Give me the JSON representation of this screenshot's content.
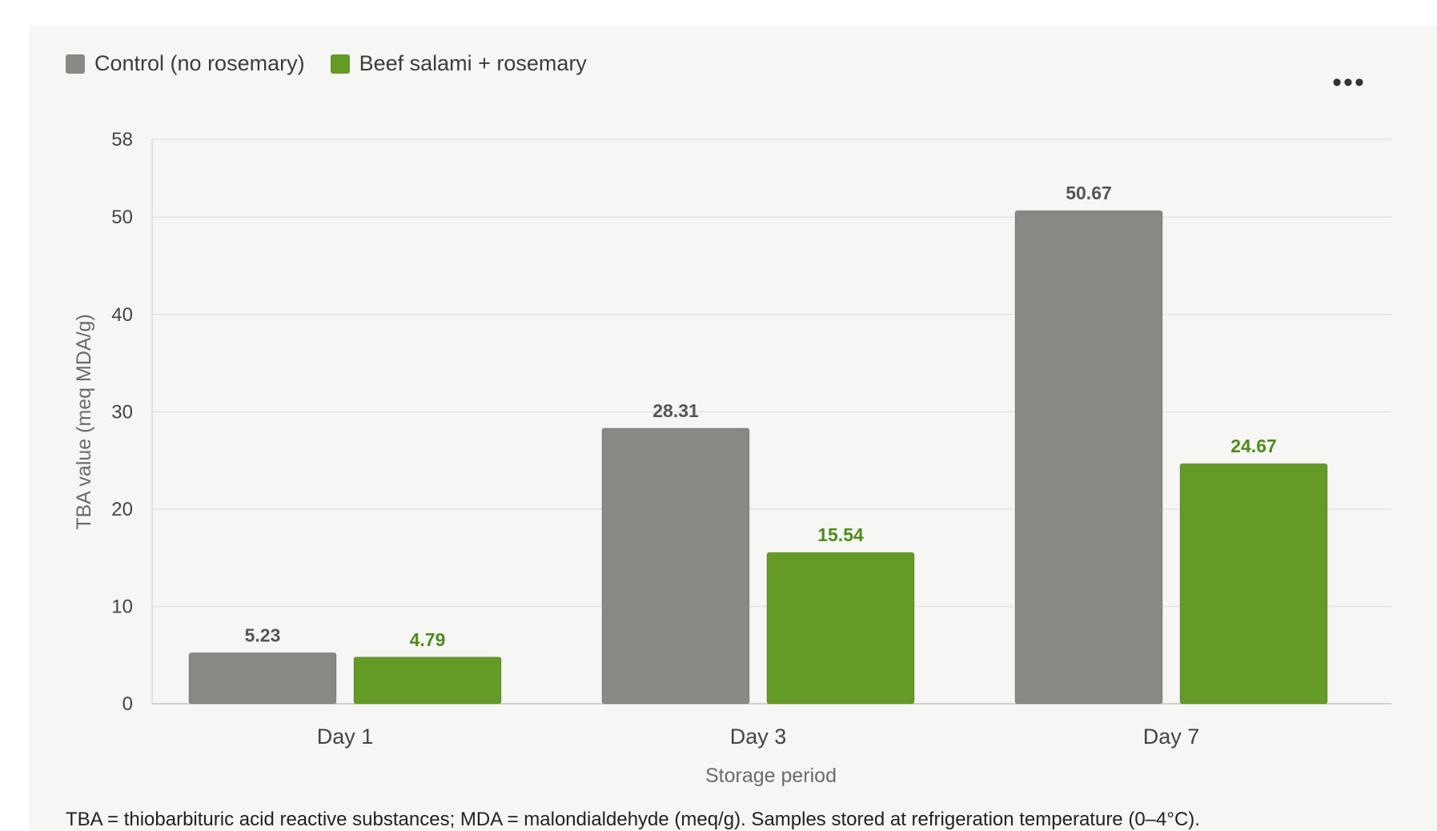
{
  "legend": [
    {
      "label": "Control (no rosemary)",
      "color": "#888884"
    },
    {
      "label": "Beef salami + rosemary",
      "color": "#649a26"
    }
  ],
  "menu_label": "•••",
  "footnote": "TBA = thiobarbituric acid reactive substances; MDA = malondialdehyde (meq/g). Samples stored at refrigeration temperature (0–4°C).",
  "chart_data": {
    "type": "bar",
    "categories": [
      "Day 1",
      "Day 3",
      "Day 7"
    ],
    "series": [
      {
        "name": "Control (no rosemary)",
        "values": [
          5.23,
          28.31,
          50.67
        ],
        "color": "#888884",
        "label_color": "#555555"
      },
      {
        "name": "Beef salami + rosemary",
        "values": [
          4.79,
          15.54,
          24.67
        ],
        "color": "#649a26",
        "label_color": "#4f8a1c"
      }
    ],
    "xlabel": "Storage period",
    "ylabel": "TBA value (meq MDA/g)",
    "ylim": [
      0,
      58
    ],
    "yticks": [
      0,
      10,
      20,
      30,
      40,
      50,
      58
    ],
    "grid": true,
    "legend_position": "top-left"
  }
}
